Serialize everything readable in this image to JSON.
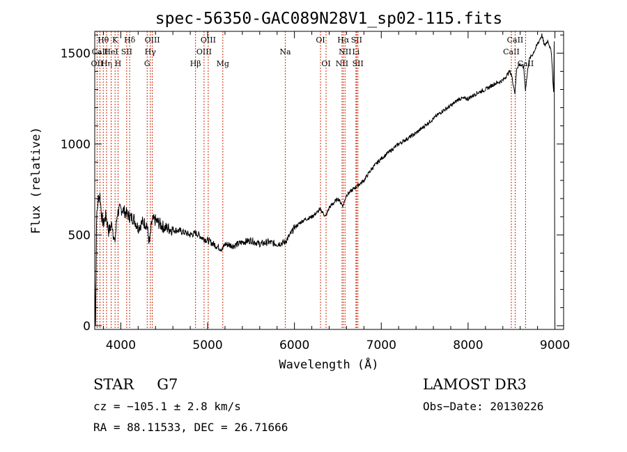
{
  "chart_data": {
    "type": "line",
    "title": "spec-56350-GAC089N28V1_sp02-115.fits",
    "xlabel": "Wavelength (Å)",
    "ylabel": "Flux (relative)",
    "xlim": [
      3700,
      9100
    ],
    "ylim": [
      -20,
      1620
    ],
    "x_ticks": [
      4000,
      5000,
      6000,
      7000,
      8000,
      9000
    ],
    "y_ticks": [
      0,
      500,
      1000,
      1500
    ],
    "grid": false,
    "series": [
      {
        "name": "flux",
        "x": [
          3700,
          3710,
          3720,
          3740,
          3760,
          3780,
          3800,
          3830,
          3860,
          3900,
          3930,
          3960,
          3990,
          4020,
          4060,
          4100,
          4150,
          4200,
          4250,
          4300,
          4330,
          4360,
          4400,
          4450,
          4500,
          4600,
          4700,
          4800,
          4860,
          4900,
          4950,
          5000,
          5100,
          5170,
          5200,
          5300,
          5400,
          5500,
          5600,
          5700,
          5800,
          5890,
          5950,
          6000,
          6100,
          6200,
          6300,
          6360,
          6400,
          6500,
          6560,
          6600,
          6650,
          6700,
          6800,
          6900,
          7000,
          7100,
          7200,
          7300,
          7400,
          7500,
          7600,
          7700,
          7800,
          7900,
          8000,
          8100,
          8200,
          8300,
          8400,
          8480,
          8500,
          8540,
          8560,
          8600,
          8640,
          8660,
          8700,
          8750,
          8800,
          8850,
          8880,
          8920,
          8960,
          8985,
          8992,
          9000
        ],
        "values": [
          260,
          20,
          580,
          700,
          720,
          600,
          560,
          610,
          520,
          560,
          450,
          620,
          640,
          640,
          620,
          600,
          590,
          540,
          570,
          560,
          450,
          580,
          580,
          560,
          540,
          530,
          520,
          500,
          510,
          500,
          480,
          470,
          440,
          420,
          450,
          440,
          460,
          470,
          450,
          460,
          450,
          460,
          500,
          540,
          580,
          600,
          640,
          600,
          650,
          700,
          660,
          720,
          740,
          760,
          800,
          870,
          920,
          960,
          1000,
          1030,
          1060,
          1100,
          1140,
          1180,
          1210,
          1250,
          1250,
          1280,
          1300,
          1330,
          1350,
          1400,
          1380,
          1280,
          1420,
          1440,
          1420,
          1300,
          1460,
          1500,
          1550,
          1600,
          1540,
          1570,
          1500,
          1280,
          1560,
          0
        ]
      }
    ],
    "lines": [
      {
        "name": "Hθ",
        "x": 3798,
        "row": 1
      },
      {
        "name": "OII",
        "x": 3727,
        "row": 3
      },
      {
        "name": "CaII",
        "x": 3760,
        "row": 2
      },
      {
        "name": "Hη",
        "x": 3836,
        "row": 3
      },
      {
        "name": "HeI",
        "x": 3889,
        "row": 2
      },
      {
        "name": "K",
        "x": 3934,
        "row": 1
      },
      {
        "name": "H",
        "x": 3968,
        "row": 3
      },
      {
        "name": "SII",
        "x": 4068,
        "row": 2
      },
      {
        "name": "Hδ",
        "x": 4102,
        "row": 1
      },
      {
        "name": "G",
        "x": 4304,
        "row": 3
      },
      {
        "name": "Hγ",
        "x": 4340,
        "row": 2
      },
      {
        "name": "OIII",
        "x": 4363,
        "row": 1
      },
      {
        "name": "Hβ",
        "x": 4861,
        "row": 3
      },
      {
        "name": "OIII",
        "x": 4959,
        "row": 2
      },
      {
        "name": "OIII",
        "x": 5007,
        "row": 1
      },
      {
        "name": "Mg",
        "x": 5175,
        "row": 3
      },
      {
        "name": "Na",
        "x": 5894,
        "row": 2
      },
      {
        "name": "OI",
        "x": 6300,
        "row": 1
      },
      {
        "name": "OI",
        "x": 6364,
        "row": 3
      },
      {
        "name": "NII",
        "x": 6548,
        "row": 3
      },
      {
        "name": "Hα",
        "x": 6563,
        "row": 1
      },
      {
        "name": "NII",
        "x": 6583,
        "row": 2
      },
      {
        "name": "Li",
        "x": 6708,
        "row": 2
      },
      {
        "name": "SII",
        "x": 6716,
        "row": 1
      },
      {
        "name": "SII",
        "x": 6731,
        "row": 3
      },
      {
        "name": "CaII",
        "x": 8498,
        "row": 2
      },
      {
        "name": "CaII",
        "x": 8542,
        "row": 1
      },
      {
        "name": "CaII",
        "x": 8662,
        "row": 3
      }
    ]
  },
  "info": {
    "class": "STAR",
    "subclass": "G7",
    "survey": "LAMOST DR3",
    "cz": "cz = −105.1 ± 2.8 km/s",
    "obsdate": "Obs−Date: 20130226",
    "coords": "RA =  88.11533, DEC =  26.71666"
  }
}
